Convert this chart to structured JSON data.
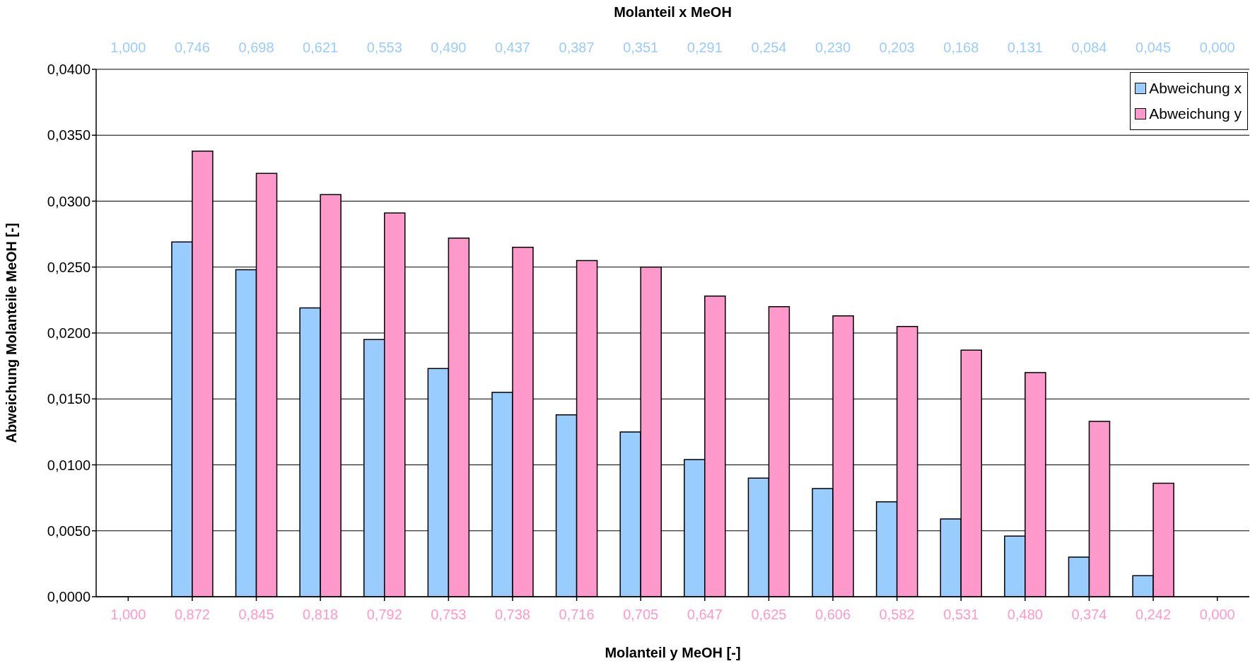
{
  "chart_data": {
    "type": "bar",
    "xlabel": "Molanteil y MeOH [-]",
    "x2label": "Molanteil x MeOH",
    "ylabel": "Abweichung Molanteile MeOH [-]",
    "categories": [
      "1,000",
      "0,872",
      "0,845",
      "0,818",
      "0,792",
      "0,753",
      "0,738",
      "0,716",
      "0,705",
      "0,647",
      "0,625",
      "0,606",
      "0,582",
      "0,531",
      "0,480",
      "0,374",
      "0,242",
      "0,000"
    ],
    "annotations": [
      "1,000",
      "0,746",
      "0,698",
      "0,621",
      "0,553",
      "0,490",
      "0,437",
      "0,387",
      "0,351",
      "0,291",
      "0,254",
      "0,230",
      "0,203",
      "0,168",
      "0,131",
      "0,084",
      "0,045",
      "0,000"
    ],
    "series": [
      {
        "name": "Abweichung x",
        "color": "#99ccff",
        "values": [
          null,
          0.0269,
          0.0248,
          0.0219,
          0.0195,
          0.0173,
          0.0155,
          0.0138,
          0.0125,
          0.0104,
          0.009,
          0.0082,
          0.0072,
          0.0059,
          0.0046,
          0.003,
          0.0016,
          null
        ]
      },
      {
        "name": "Abweichung y",
        "color": "#ff99cc",
        "values": [
          null,
          0.0338,
          0.0321,
          0.0305,
          0.0291,
          0.0272,
          0.0265,
          0.0255,
          0.025,
          0.0228,
          0.022,
          0.0213,
          0.0205,
          0.0187,
          0.017,
          0.0133,
          0.0086,
          null
        ]
      }
    ],
    "ylim": [
      0,
      0.04
    ],
    "yticks": [
      {
        "value": 0,
        "label": "0,0000"
      },
      {
        "value": 0.005,
        "label": "0,0050"
      },
      {
        "value": 0.01,
        "label": "0,0100"
      },
      {
        "value": 0.015,
        "label": "0,0150"
      },
      {
        "value": 0.02,
        "label": "0,0200"
      },
      {
        "value": 0.025,
        "label": "0,0250"
      },
      {
        "value": 0.03,
        "label": "0,0300"
      },
      {
        "value": 0.035,
        "label": "0,0350"
      },
      {
        "value": 0.04,
        "label": "0,0400"
      }
    ],
    "grid": "y",
    "legend": "top right"
  }
}
